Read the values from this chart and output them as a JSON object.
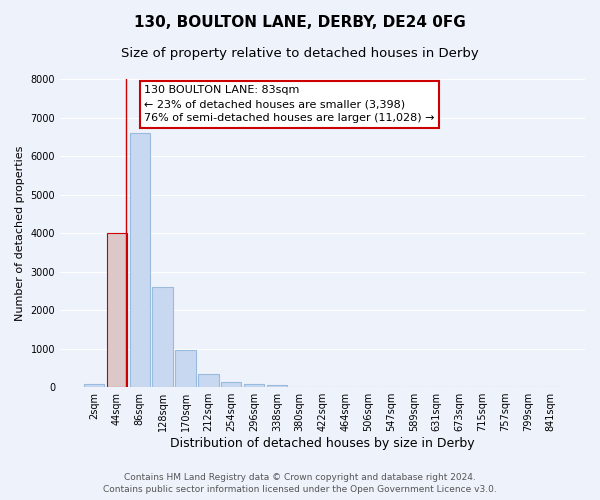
{
  "title": "130, BOULTON LANE, DERBY, DE24 0FG",
  "subtitle": "Size of property relative to detached houses in Derby",
  "xlabel": "Distribution of detached houses by size in Derby",
  "ylabel": "Number of detached properties",
  "bar_labels": [
    "2sqm",
    "44sqm",
    "86sqm",
    "128sqm",
    "170sqm",
    "212sqm",
    "254sqm",
    "296sqm",
    "338sqm",
    "380sqm",
    "422sqm",
    "464sqm",
    "506sqm",
    "547sqm",
    "589sqm",
    "631sqm",
    "673sqm",
    "715sqm",
    "757sqm",
    "799sqm",
    "841sqm"
  ],
  "bar_values": [
    70,
    4000,
    6600,
    2600,
    960,
    330,
    130,
    80,
    50,
    0,
    0,
    0,
    0,
    0,
    0,
    0,
    0,
    0,
    0,
    0,
    0
  ],
  "highlight_bar_index": 1,
  "highlight_color": "#dcc8c8",
  "normal_color": "#c8d8f0",
  "highlight_edge_color": "#cc0000",
  "normal_edge_color": "#99bbdd",
  "ylim": [
    0,
    8000
  ],
  "yticks": [
    0,
    1000,
    2000,
    3000,
    4000,
    5000,
    6000,
    7000,
    8000
  ],
  "annotation_title": "130 BOULTON LANE: 83sqm",
  "annotation_line1": "← 23% of detached houses are smaller (3,398)",
  "annotation_line2": "76% of semi-detached houses are larger (11,028) →",
  "footer1": "Contains HM Land Registry data © Crown copyright and database right 2024.",
  "footer2": "Contains public sector information licensed under the Open Government Licence v3.0.",
  "background_color": "#eef2fb",
  "ax_background_color": "#eef2fb",
  "annotation_box_color": "white",
  "annotation_box_edge": "#cc0000",
  "grid_color": "#ffffff",
  "title_fontsize": 11,
  "subtitle_fontsize": 9.5,
  "xlabel_fontsize": 9,
  "ylabel_fontsize": 8,
  "tick_fontsize": 7,
  "annotation_fontsize": 8,
  "footer_fontsize": 6.5
}
